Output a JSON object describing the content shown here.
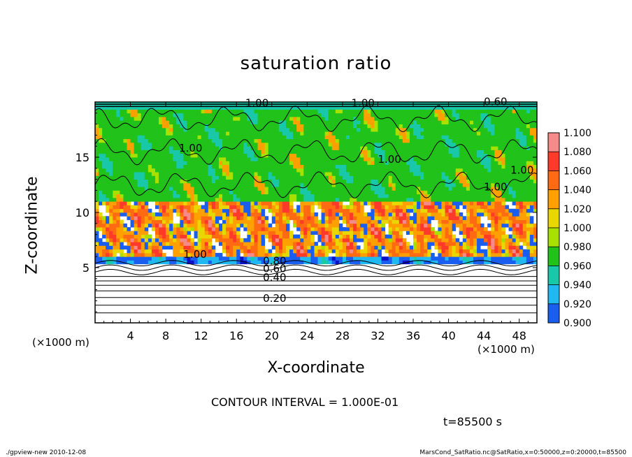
{
  "chart_data": {
    "type": "heatmap",
    "title": "saturation ratio",
    "xlabel": "X-coordinate",
    "ylabel": "Z-coordinate",
    "x_unit": "(×1000 m)",
    "y_unit": "(×1000 m)",
    "xlim": [
      0,
      50
    ],
    "ylim": [
      0,
      20
    ],
    "x_ticks": [
      4,
      8,
      12,
      16,
      20,
      24,
      28,
      32,
      36,
      40,
      44,
      48
    ],
    "y_ticks": [
      5,
      10,
      15
    ],
    "colorbar": {
      "levels": [
        "1.100",
        "1.080",
        "1.060",
        "1.040",
        "1.020",
        "1.000",
        "0.980",
        "0.960",
        "0.940",
        "0.920",
        "0.900"
      ],
      "colors": [
        "#f48a8a",
        "#ff3a2a",
        "#ff6a12",
        "#ffa000",
        "#e8d800",
        "#a8e000",
        "#21c21a",
        "#19c8a8",
        "#1fb8f0",
        "#1a5ef0",
        "#0a10c8",
        "#7a10c0"
      ]
    },
    "contour_labels": [
      "0.20",
      "0.40",
      "0.60",
      "0.80",
      "1.00",
      "1.00",
      "1.00",
      "1.00",
      "1.00",
      "0.60",
      "1.00",
      "1.00"
    ],
    "contour_interval": "CONTOUR INTERVAL = 1.000E-01",
    "time_label": "t=85500 s"
  },
  "footer": {
    "left": "./gpview-new  2010-12-08",
    "right": "MarsCond_SatRatio.nc@SatRatio,x=0:50000,z=0:20000,t=85500"
  }
}
